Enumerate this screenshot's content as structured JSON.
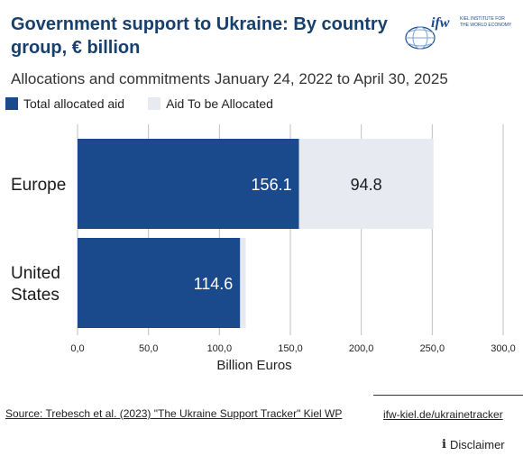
{
  "header": {
    "title": "Government support to Ukraine: By country group, € billion",
    "subtitle": "Allocations and commitments January 24, 2022 to April 30, 2025"
  },
  "logo": {
    "wordmark": "ifw",
    "line1": "KIEL INSTITUTE FOR",
    "line2": "THE WORLD ECONOMY",
    "icon": "globe-icon"
  },
  "colors": {
    "allocated": "#1b4a8c",
    "to_be_allocated": "#e8eaf2",
    "grid": "#bfbfbf"
  },
  "chart_data": {
    "type": "bar",
    "orientation": "horizontal",
    "stacked": true,
    "categories": [
      "Europe",
      "United\nStates"
    ],
    "series": [
      {
        "name": "Total allocated aid",
        "values": [
          156.1,
          114.6
        ]
      },
      {
        "name": "Aid To be Allocated",
        "values": [
          94.8,
          4.0
        ]
      }
    ],
    "data_labels": [
      [
        "156.1",
        "114.6"
      ],
      [
        "94.8",
        ""
      ]
    ],
    "xlabel": "Billion Euros",
    "xlim": [
      0,
      300
    ],
    "xticks": [
      0,
      50,
      100,
      150,
      200,
      250,
      300
    ],
    "xtick_labels": [
      "0,0",
      "50,0",
      "100,0",
      "150,0",
      "200,0",
      "250,0",
      "300,0"
    ],
    "grid": "vertical",
    "legend_position": "top-left"
  },
  "footer": {
    "source": "Source: Trebesch et al. (2023) \"The Ukraine Support Tracker\" Kiel WP",
    "link": "ifw-kiel.de/ukrainetracker",
    "disclaimer": "Disclaimer",
    "disclaimer_icon": "info-icon"
  }
}
